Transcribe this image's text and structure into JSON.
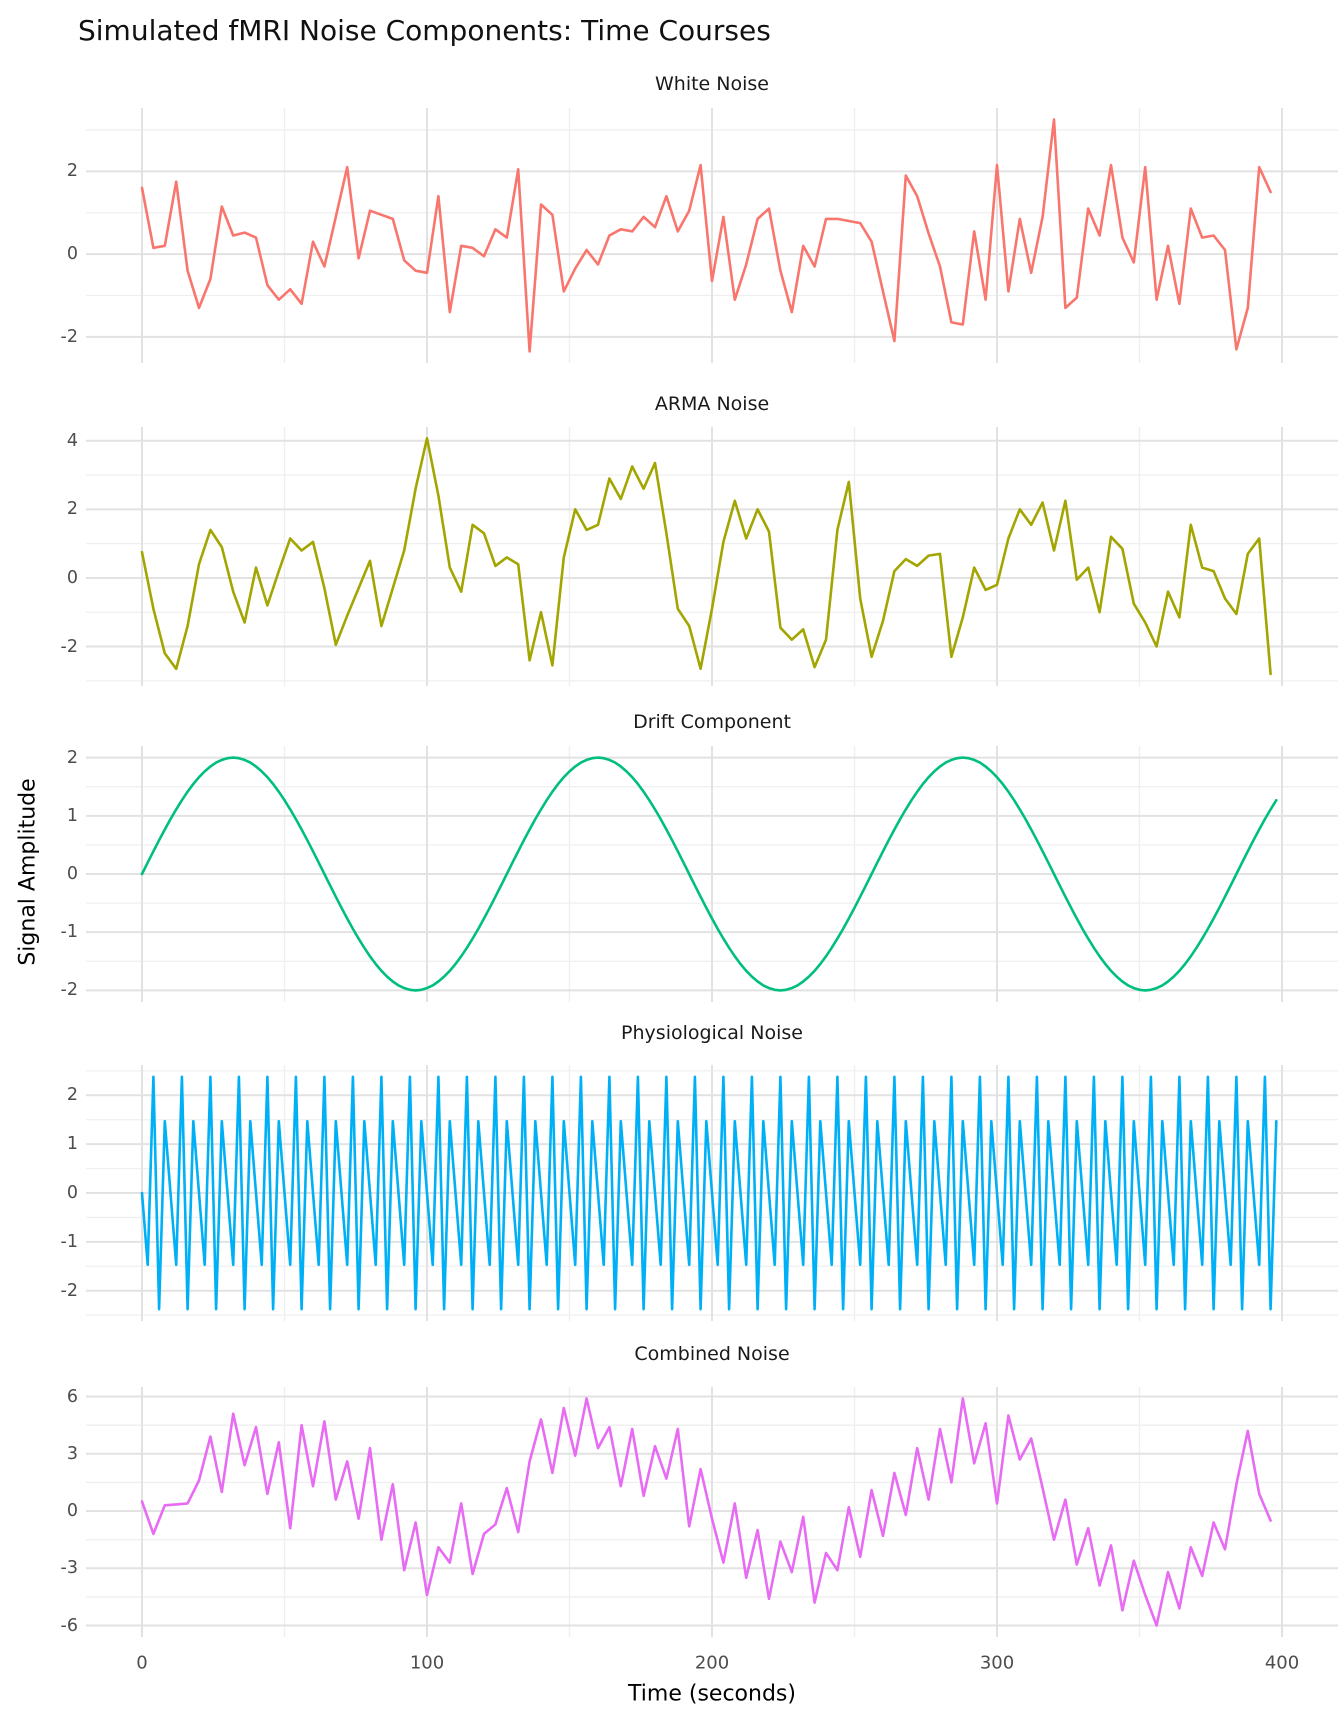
{
  "page": {
    "title": "Simulated fMRI Noise Components: Time Courses",
    "x_axis_label": "Time (seconds)",
    "y_axis_label": "Signal Amplitude"
  },
  "axis": {
    "x_range": [
      0,
      400
    ],
    "x_ticks": [
      0,
      100,
      200,
      300,
      400
    ],
    "x_minor": [
      50,
      150,
      250,
      350
    ],
    "tick_label_color": "#4d4d4d",
    "major_grid_color": "#e2e2e2",
    "minor_grid_color": "#efefef",
    "background": "#ffffff"
  },
  "chart_data": {
    "type": "line",
    "title": "Simulated fMRI Noise Components: Time Courses",
    "xlabel": "Time (seconds)",
    "ylabel": "Signal Amplitude",
    "xlim": [
      0,
      400
    ],
    "grid": "major+minor",
    "legend_position": "none",
    "panels": [
      {
        "key": "white",
        "title": "White Noise",
        "color": "#F8766D",
        "y_ticks": [
          -2,
          0,
          2
        ],
        "y_minor": [
          -1,
          1,
          3
        ],
        "y_domain": [
          -2.63,
          3.53
        ],
        "x_start": 0,
        "x_step": 4,
        "values": [
          1.6,
          0.15,
          0.2,
          1.75,
          -0.4,
          -1.3,
          -0.6,
          1.15,
          0.45,
          0.52,
          0.4,
          -0.75,
          -1.1,
          -0.85,
          -1.2,
          0.3,
          -0.3,
          0.9,
          2.1,
          -0.1,
          1.05,
          0.95,
          0.85,
          -0.15,
          -0.4,
          -0.45,
          1.4,
          -1.4,
          0.2,
          0.15,
          -0.05,
          0.6,
          0.4,
          2.05,
          -2.35,
          1.2,
          0.95,
          -0.9,
          -0.35,
          0.1,
          -0.25,
          0.45,
          0.6,
          0.55,
          0.9,
          0.65,
          1.4,
          0.55,
          1.05,
          2.15,
          -0.65,
          0.9,
          -1.1,
          -0.25,
          0.85,
          1.1,
          -0.4,
          -1.4,
          0.2,
          -0.3,
          0.85,
          0.85,
          0.8,
          0.75,
          0.3,
          -0.9,
          -2.1,
          1.9,
          1.4,
          0.5,
          -0.3,
          -1.65,
          -1.7,
          0.55,
          -1.1,
          2.15,
          -0.9,
          0.85,
          -0.45,
          0.9,
          3.25,
          -1.3,
          -1.05,
          1.1,
          0.45,
          2.15,
          0.4,
          -0.2,
          2.1,
          -1.1,
          0.2,
          -1.2,
          1.1,
          0.4,
          0.45,
          0.1,
          -2.3,
          -1.3,
          2.1,
          1.5
        ]
      },
      {
        "key": "arma",
        "title": "ARMA Noise",
        "color": "#A3A500",
        "y_ticks": [
          -2,
          0,
          2,
          4
        ],
        "y_minor": [
          -3,
          -1,
          1,
          3
        ],
        "y_domain": [
          -3.15,
          4.4
        ],
        "x_start": 0,
        "x_step": 4,
        "values": [
          0.75,
          -0.9,
          -2.2,
          -2.65,
          -1.4,
          0.4,
          1.4,
          0.9,
          -0.4,
          -1.3,
          0.3,
          -0.8,
          0.2,
          1.15,
          0.8,
          1.05,
          -0.3,
          -1.95,
          -1.1,
          -0.3,
          0.5,
          -1.4,
          -0.3,
          0.8,
          2.6,
          4.07,
          2.4,
          0.3,
          -0.4,
          1.55,
          1.3,
          0.35,
          0.6,
          0.4,
          -2.4,
          -1.0,
          -2.55,
          0.6,
          2.0,
          1.4,
          1.55,
          2.9,
          2.3,
          3.25,
          2.6,
          3.35,
          1.3,
          -0.9,
          -1.4,
          -2.65,
          -0.9,
          1.05,
          2.25,
          1.15,
          2.0,
          1.35,
          -1.45,
          -1.8,
          -1.5,
          -2.6,
          -1.8,
          1.4,
          2.8,
          -0.6,
          -2.3,
          -1.25,
          0.2,
          0.55,
          0.35,
          0.65,
          0.7,
          -2.3,
          -1.15,
          0.3,
          -0.35,
          -0.2,
          1.15,
          2.0,
          1.55,
          2.2,
          0.8,
          2.25,
          -0.05,
          0.3,
          -1.0,
          1.2,
          0.85,
          -0.75,
          -1.3,
          -2.0,
          -0.4,
          -1.15,
          1.55,
          0.3,
          0.2,
          -0.6,
          -1.05,
          0.7,
          1.15,
          -2.8
        ]
      },
      {
        "key": "drift",
        "title": "Drift Component",
        "color": "#00BF7D",
        "y_ticks": [
          -2,
          -1,
          0,
          1,
          2
        ],
        "y_minor": [
          -1.5,
          -0.5,
          0.5,
          1.5
        ],
        "y_domain": [
          -2.2,
          2.2
        ],
        "signal": {
          "kind": "sine",
          "amplitude": 2,
          "period_seconds": 128,
          "t_start": 0,
          "t_end": 398,
          "sample_step": 2
        }
      },
      {
        "key": "physiological",
        "title": "Physiological Noise",
        "color": "#00B0F6",
        "y_ticks": [
          -2,
          -1,
          0,
          1,
          2
        ],
        "y_minor": [
          -2.5,
          -1.5,
          -0.5,
          0.5,
          1.5,
          2.5
        ],
        "y_domain": [
          -2.62,
          2.62
        ],
        "signal": {
          "kind": "sine",
          "amplitude": 2.5,
          "frequency_hz": 0.3,
          "t_start": 0,
          "t_end": 398,
          "sample_step": 2
        }
      },
      {
        "key": "combined",
        "title": "Combined Noise",
        "color": "#E76BF3",
        "y_ticks": [
          -6,
          -3,
          0,
          3,
          6
        ],
        "y_minor": [
          -4.5,
          -1.5,
          1.5,
          4.5
        ],
        "y_domain": [
          -6.6,
          6.5
        ],
        "x_start": 0,
        "x_step": 4,
        "values": [
          0.5,
          -1.2,
          0.3,
          0.35,
          0.4,
          1.6,
          3.9,
          1.0,
          5.1,
          2.4,
          4.4,
          0.9,
          3.6,
          -0.9,
          4.5,
          1.3,
          4.7,
          0.6,
          2.6,
          -0.4,
          3.3,
          -1.5,
          1.4,
          -3.1,
          -0.6,
          -4.4,
          -1.9,
          -2.7,
          0.4,
          -3.3,
          -1.2,
          -0.7,
          1.2,
          -1.1,
          2.6,
          4.8,
          2.0,
          5.4,
          2.9,
          5.9,
          3.3,
          4.4,
          1.3,
          4.3,
          0.8,
          3.4,
          1.7,
          4.3,
          -0.8,
          2.2,
          -0.4,
          -2.7,
          0.4,
          -3.5,
          -1.0,
          -4.6,
          -1.6,
          -3.2,
          -0.3,
          -4.8,
          -2.2,
          -3.1,
          0.2,
          -2.4,
          1.1,
          -1.3,
          2.0,
          -0.2,
          3.3,
          0.6,
          4.3,
          1.5,
          5.9,
          2.5,
          4.6,
          0.4,
          5.0,
          2.7,
          3.8,
          1.2,
          -1.5,
          0.6,
          -2.8,
          -0.9,
          -3.9,
          -1.8,
          -5.2,
          -2.6,
          -4.4,
          -6.0,
          -3.2,
          -5.1,
          -1.9,
          -3.4,
          -0.6,
          -2.0,
          1.4,
          4.2,
          0.9,
          -0.5
        ]
      }
    ]
  }
}
